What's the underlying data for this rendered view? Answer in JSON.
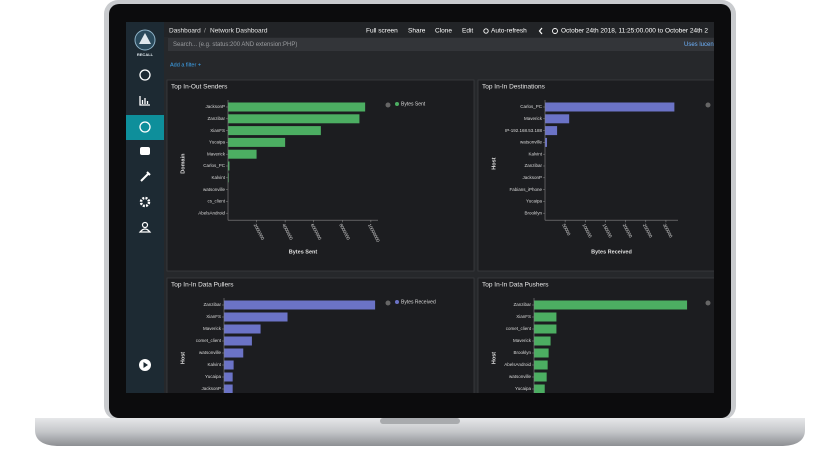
{
  "app": {
    "logo_text": "RECALL"
  },
  "header": {
    "breadcrumb_root": "Dashboard",
    "breadcrumb_separator": "/",
    "breadcrumb_current": "Network Dashboard",
    "actions": [
      "Full screen",
      "Share",
      "Clone",
      "Edit",
      "Auto-refresh"
    ],
    "time_range": "October 24th 2018, 11:25:00.000 to October 24th 2"
  },
  "search": {
    "placeholder": "Search... (e.g. status:200 AND extension:PHP)",
    "syntax_link": "Uses lucen"
  },
  "filter": {
    "add": "Add a filter +"
  },
  "panels": [
    {
      "title": "Top In-Out Senders",
      "type": "bar",
      "y_label": "Domain",
      "x_label": "Bytes Sent",
      "legend": "Bytes Sent",
      "color": "#4cae62",
      "categories": [
        "JacksonP",
        "Zanzibar",
        "XianFS",
        "Yucaipa",
        "Maverick",
        "Carlos_PC",
        "Kalvint",
        "watsonville",
        "cs_client",
        "AbelsAndroid"
      ],
      "values": [
        9600000,
        9200000,
        6500000,
        4000000,
        2000000,
        100000,
        50000,
        0,
        0,
        0
      ],
      "xlim": [
        0,
        10500000
      ],
      "xticks": [
        2000000,
        4000000,
        6000000,
        8000000,
        10000000
      ]
    },
    {
      "title": "Top In-In Destinations",
      "type": "bar",
      "y_label": "Host",
      "x_label": "Bytes Received",
      "color": "#6b73c6",
      "categories": [
        "Carlos_PC",
        "Maverick",
        "IP-192.168.53.188",
        "watsonville",
        "Kalvint",
        "Zanzibar",
        "JacksonP",
        "Fabians_iPhone",
        "Yucaipa",
        "Brooklyn"
      ],
      "values": [
        321000,
        60000,
        30000,
        5000,
        0,
        0,
        0,
        0,
        0,
        0
      ],
      "xlim": [
        0,
        330000
      ],
      "xticks": [
        50000,
        100000,
        150000,
        200000,
        250000,
        300000
      ]
    },
    {
      "title": "Top In-In Data Pullers",
      "type": "bar",
      "y_label": "Host",
      "legend": "Bytes Received",
      "color": "#6b73c6",
      "categories": [
        "Zanzibar",
        "XianFS",
        "Maverick",
        "comet_client",
        "watsonville",
        "Kalvint",
        "Yucaipa",
        "JacksonP"
      ],
      "values": [
        157,
        66,
        38,
        29,
        20,
        10,
        9,
        9
      ],
      "xlim": [
        0,
        160
      ]
    },
    {
      "title": "Top In-In Data Pushers",
      "type": "bar",
      "y_label": "Host",
      "color": "#4cae62",
      "categories": [
        "Zanzibar",
        "XianFS",
        "comet_client",
        "Maverick",
        "Brooklyn",
        "AbelsAndroid",
        "watsonville",
        "Yucaipa"
      ],
      "values": [
        157,
        23,
        23,
        17,
        15,
        14,
        13,
        11
      ],
      "xlim": [
        0,
        160
      ]
    }
  ]
}
